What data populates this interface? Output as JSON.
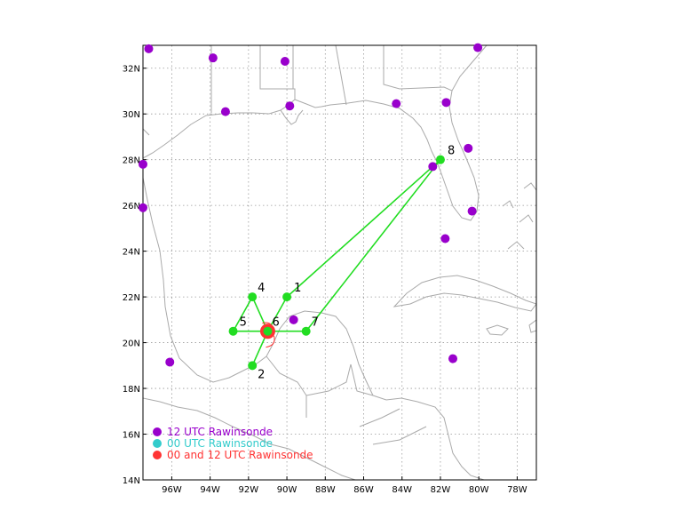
{
  "map": {
    "lon_range": [
      -97.5,
      -77
    ],
    "lat_range": [
      14,
      33
    ],
    "grid": true,
    "x_ticks": [
      {
        "lon": -96,
        "label": "96W"
      },
      {
        "lon": -94,
        "label": "94W"
      },
      {
        "lon": -92,
        "label": "92W"
      },
      {
        "lon": -90,
        "label": "90W"
      },
      {
        "lon": -88,
        "label": "88W"
      },
      {
        "lon": -86,
        "label": "86W"
      },
      {
        "lon": -84,
        "label": "84W"
      },
      {
        "lon": -82,
        "label": "82W"
      },
      {
        "lon": -80,
        "label": "80W"
      },
      {
        "lon": -78,
        "label": "78W"
      }
    ],
    "y_ticks": [
      {
        "lat": 14,
        "label": "14N"
      },
      {
        "lat": 16,
        "label": "16N"
      },
      {
        "lat": 18,
        "label": "18N"
      },
      {
        "lat": 20,
        "label": "20N"
      },
      {
        "lat": 22,
        "label": "22N"
      },
      {
        "lat": 24,
        "label": "24N"
      },
      {
        "lat": 26,
        "label": "26N"
      },
      {
        "lat": 28,
        "label": "28N"
      },
      {
        "lat": 30,
        "label": "30N"
      },
      {
        "lat": 32,
        "label": "32N"
      }
    ]
  },
  "colors": {
    "rawinsonde_12utc": "#9900cc",
    "rawinsonde_00utc": "#33cccc",
    "rawinsonde_both": "#ff3333",
    "flight_track": "#22dd22",
    "coastline": "#aaaaaa",
    "grid": "#999999"
  },
  "rawinsonde_12utc": [
    {
      "lon": -97.2,
      "lat": 32.85
    },
    {
      "lon": -93.85,
      "lat": 32.45
    },
    {
      "lon": -90.1,
      "lat": 32.3
    },
    {
      "lon": -80.05,
      "lat": 32.9
    },
    {
      "lon": -93.2,
      "lat": 30.1
    },
    {
      "lon": -89.85,
      "lat": 30.35
    },
    {
      "lon": -84.3,
      "lat": 30.45
    },
    {
      "lon": -81.7,
      "lat": 30.5
    },
    {
      "lon": -97.5,
      "lat": 27.8
    },
    {
      "lon": -80.55,
      "lat": 28.5
    },
    {
      "lon": -82.4,
      "lat": 27.7
    },
    {
      "lon": -97.5,
      "lat": 25.9
    },
    {
      "lon": -80.35,
      "lat": 25.75
    },
    {
      "lon": -81.75,
      "lat": 24.55
    },
    {
      "lon": -89.65,
      "lat": 21.0
    },
    {
      "lon": -96.1,
      "lat": 19.15
    },
    {
      "lon": -81.35,
      "lat": 19.3
    }
  ],
  "rawinsonde_both": [
    {
      "lon": -91.0,
      "lat": 20.5
    }
  ],
  "waypoints": [
    {
      "id": "1",
      "lon": -90.0,
      "lat": 22.0
    },
    {
      "id": "2",
      "lon": -91.8,
      "lat": 19.0
    },
    {
      "id": "4",
      "lon": -91.8,
      "lat": 22.0
    },
    {
      "id": "5",
      "lon": -92.8,
      "lat": 20.5
    },
    {
      "id": "6",
      "lon": -91.0,
      "lat": 20.5
    },
    {
      "id": "7",
      "lon": -89.0,
      "lat": 20.5
    },
    {
      "id": "8",
      "lon": -82.0,
      "lat": 28.0
    }
  ],
  "flight_track": [
    {
      "lon": -82.0,
      "lat": 28.0
    },
    {
      "lon": -90.0,
      "lat": 22.0
    },
    {
      "lon": -91.0,
      "lat": 20.5
    },
    {
      "lon": -91.8,
      "lat": 22.0
    },
    {
      "lon": -92.8,
      "lat": 20.5
    },
    {
      "lon": -91.0,
      "lat": 20.5
    },
    {
      "lon": -91.8,
      "lat": 19.0
    },
    {
      "lon": -91.0,
      "lat": 20.5
    },
    {
      "lon": -89.0,
      "lat": 20.5
    },
    {
      "lon": -82.0,
      "lat": 28.0
    }
  ],
  "legend": [
    {
      "label": "12 UTC Rawinsonde",
      "color": "#9900cc"
    },
    {
      "label": "00 UTC Rawinsonde",
      "color": "#33cccc"
    },
    {
      "label": "00 and 12 UTC Rawinsonde",
      "color": "#ff3333"
    }
  ]
}
